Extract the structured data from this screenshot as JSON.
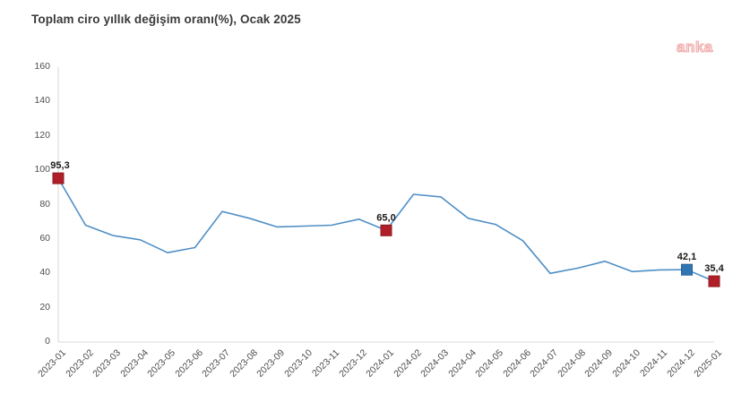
{
  "header": {
    "title": "Toplam ciro yıllık değişim oranı(%), Ocak 2025",
    "logo_text": "anka"
  },
  "colors": {
    "line": "#4f8fc6",
    "marker_red": "#b01f27",
    "marker_red_border": "#911a20",
    "marker_blue": "#3076b5",
    "marker_blue_border": "#275f94",
    "axis": "#d9d9d9",
    "title_text": "#3a3a3a",
    "tick_text": "#4d4d4d",
    "data_label_text": "#1a1a1a",
    "logo_pink": "#f0acac"
  },
  "chart_data": {
    "type": "line",
    "title": "Toplam ciro yıllık değişim oranı(%), Ocak 2025",
    "categories": [
      "2023-01",
      "2023-02",
      "2023-03",
      "2023-04",
      "2023-05",
      "2023-06",
      "2023-07",
      "2023-08",
      "2023-09",
      "2023-10",
      "2023-11",
      "2023-12",
      "2024-01",
      "2024-02",
      "2024-03",
      "2024-04",
      "2024-05",
      "2024-06",
      "2024-07",
      "2024-08",
      "2024-09",
      "2024-10",
      "2024-11",
      "2024-12",
      "2025-01"
    ],
    "values": [
      95.3,
      68,
      62,
      59.5,
      52,
      55,
      76,
      72,
      67,
      67.5,
      68,
      71.5,
      65,
      86,
      84.5,
      72,
      68.5,
      59,
      40,
      43,
      47,
      41,
      42,
      42.1,
      35.4
    ],
    "yticks": [
      0,
      20,
      40,
      60,
      80,
      100,
      120,
      140,
      160
    ],
    "ylim": [
      0,
      160
    ],
    "grid": "off",
    "legend": "none",
    "marked_points": [
      {
        "category": "2023-01",
        "index": 0,
        "label": "95,3",
        "marker": "red"
      },
      {
        "category": "2024-01",
        "index": 12,
        "label": "65,0",
        "marker": "red"
      },
      {
        "category": "2024-12",
        "index": 23,
        "label": "42,1",
        "marker": "blue"
      },
      {
        "category": "2025-01",
        "index": 24,
        "label": "35,4",
        "marker": "red"
      }
    ]
  }
}
